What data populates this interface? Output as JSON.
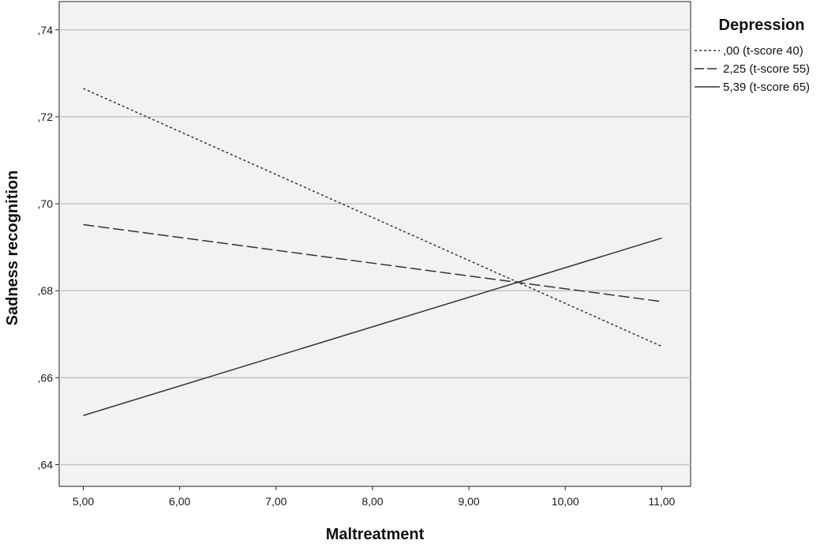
{
  "chart_data": {
    "type": "line",
    "xlabel": "Maltreatment",
    "ylabel": "Sadness recognition",
    "xlim": [
      4.75,
      11.3
    ],
    "ylim": [
      0.635,
      0.7465
    ],
    "x_ticks": [
      5,
      6,
      7,
      8,
      9,
      10,
      11
    ],
    "x_tick_labels": [
      "5,00",
      "6,00",
      "7,00",
      "8,00",
      "9,00",
      "10,00",
      "11,00"
    ],
    "y_ticks": [
      0.64,
      0.66,
      0.68,
      0.7,
      0.72,
      0.74
    ],
    "y_tick_labels": [
      ",64",
      ",66",
      ",68",
      ",70",
      ",72",
      ",74"
    ],
    "grid": "horizontal",
    "legend": {
      "title": "Depression",
      "position": "top-right"
    },
    "series": [
      {
        "name": ",00 (t-score 40)",
        "style": "dotted",
        "x": [
          5,
          11
        ],
        "y": [
          0.7265,
          0.6672
        ]
      },
      {
        "name": "2,25 (t-score 55)",
        "style": "dashed",
        "x": [
          5,
          11
        ],
        "y": [
          0.6952,
          0.6775
        ]
      },
      {
        "name": "5,39 (t-score 65)",
        "style": "solid",
        "x": [
          5,
          11
        ],
        "y": [
          0.6513,
          0.6921
        ]
      }
    ]
  }
}
